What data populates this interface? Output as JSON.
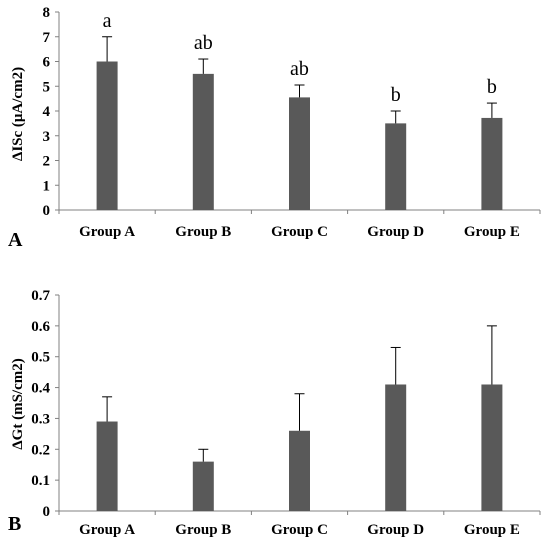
{
  "chart_data": [
    {
      "type": "bar",
      "panel_label": "A",
      "ylabel": "ΔISc (μA/cm2)",
      "xlabel": "",
      "categories": [
        "Group A",
        "Group B",
        "Group C",
        "Group D",
        "Group E"
      ],
      "values": [
        6.0,
        5.5,
        4.55,
        3.5,
        3.72
      ],
      "error_plus": [
        1.0,
        0.6,
        0.5,
        0.5,
        0.6
      ],
      "annotations": [
        "a",
        "ab",
        "ab",
        "b",
        "b"
      ],
      "ylim": [
        0,
        8
      ],
      "yticks": [
        "0",
        "1",
        "2",
        "3",
        "4",
        "5",
        "6",
        "7",
        "8"
      ],
      "bar_color": "#595959",
      "grid": false
    },
    {
      "type": "bar",
      "panel_label": "B",
      "ylabel": "ΔGt (mS/cm2)",
      "xlabel": "",
      "categories": [
        "Group A",
        "Group B",
        "Group C",
        "Group D",
        "Group E"
      ],
      "values": [
        0.29,
        0.16,
        0.26,
        0.41,
        0.41
      ],
      "error_plus": [
        0.08,
        0.04,
        0.12,
        0.12,
        0.19
      ],
      "ylim": [
        0,
        0.7
      ],
      "yticks": [
        "0",
        "0.1",
        "0.2",
        "0.3",
        "0.4",
        "0.5",
        "0.6",
        "0.7"
      ],
      "bar_color": "#595959",
      "grid": false
    }
  ]
}
